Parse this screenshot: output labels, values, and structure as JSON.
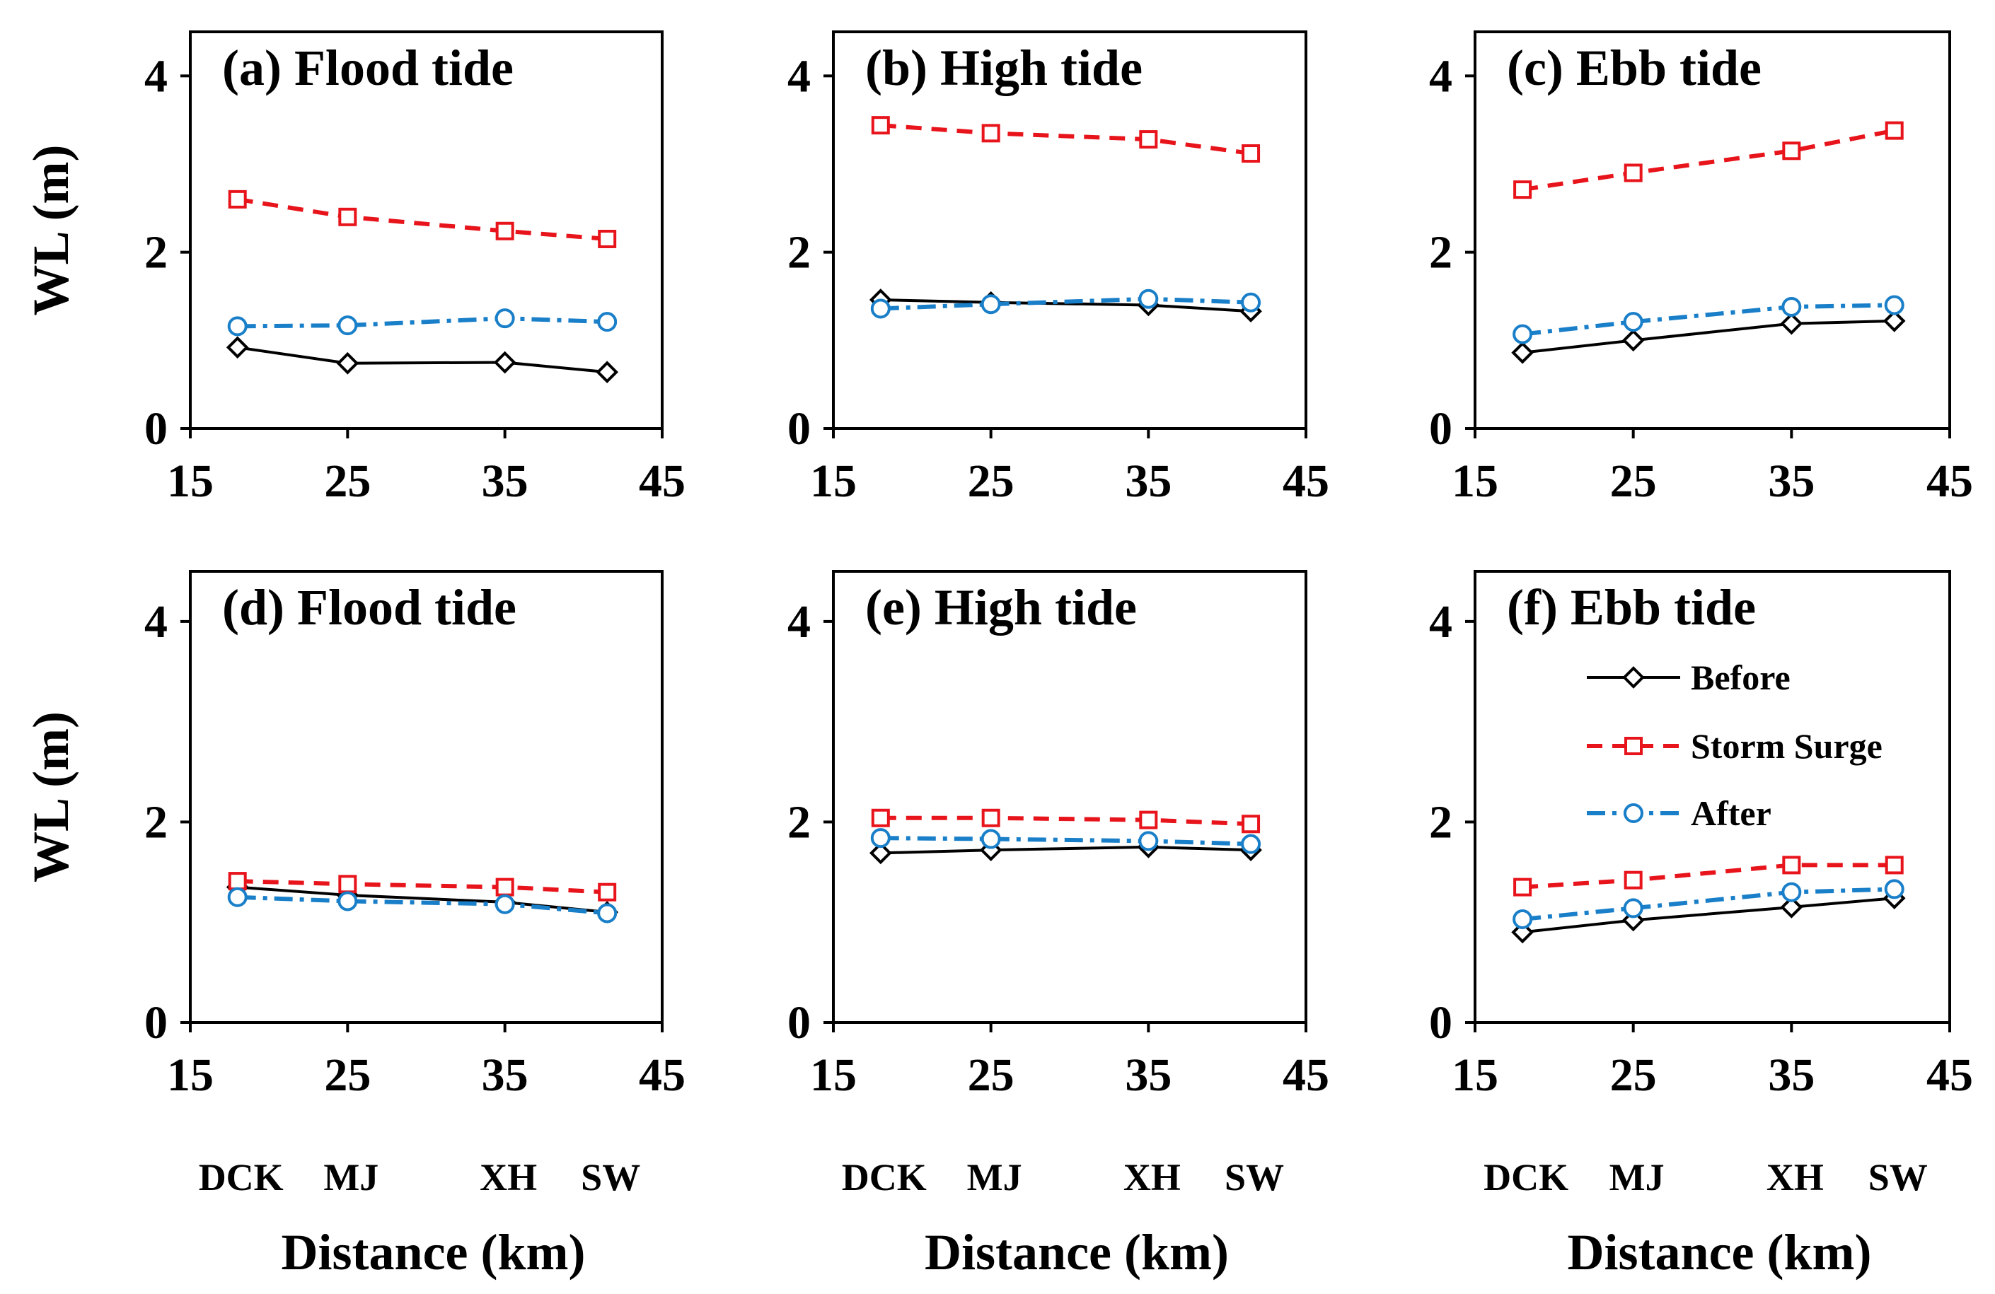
{
  "colors": {
    "before": "#000000",
    "storm_surge": "#e8141b",
    "after": "#1a7fc9"
  },
  "stations": [
    "DCK",
    "MJ",
    "XH",
    "SW"
  ],
  "axis": {
    "xlabel": "Distance (km)",
    "ylabel": "WL (m)"
  },
  "legend": {
    "before": "Before",
    "storm_surge": "Storm Surge",
    "after": "After"
  },
  "chart_data": [
    {
      "type": "line",
      "panel": "a",
      "title": "(a) Flood tide",
      "xlabel": "",
      "ylabel": "WL (m)",
      "xlim": [
        15,
        45
      ],
      "ylim": [
        0,
        4.5
      ],
      "xticks": [
        15,
        25,
        35,
        45
      ],
      "yticks": [
        0,
        2,
        4
      ],
      "x": [
        18,
        25,
        35,
        41.5
      ],
      "series": [
        {
          "name": "Before",
          "values": [
            0.92,
            0.74,
            0.75,
            0.64
          ]
        },
        {
          "name": "Storm Surge",
          "values": [
            2.6,
            2.4,
            2.24,
            2.15
          ]
        },
        {
          "name": "After",
          "values": [
            1.16,
            1.17,
            1.25,
            1.21
          ]
        }
      ]
    },
    {
      "type": "line",
      "panel": "b",
      "title": "(b) High tide",
      "xlabel": "",
      "ylabel": "",
      "xlim": [
        15,
        45
      ],
      "ylim": [
        0,
        4.5
      ],
      "xticks": [
        15,
        25,
        35,
        45
      ],
      "yticks": [
        0,
        2,
        4
      ],
      "x": [
        18,
        25,
        35,
        41.5
      ],
      "series": [
        {
          "name": "Before",
          "values": [
            1.46,
            1.43,
            1.4,
            1.33
          ]
        },
        {
          "name": "Storm Surge",
          "values": [
            3.44,
            3.35,
            3.28,
            3.12
          ]
        },
        {
          "name": "After",
          "values": [
            1.36,
            1.41,
            1.47,
            1.43
          ]
        }
      ]
    },
    {
      "type": "line",
      "panel": "c",
      "title": "(c) Ebb tide",
      "xlabel": "",
      "ylabel": "",
      "xlim": [
        15,
        45
      ],
      "ylim": [
        0,
        4.5
      ],
      "xticks": [
        15,
        25,
        35,
        45
      ],
      "yticks": [
        0,
        2,
        4
      ],
      "x": [
        18,
        25,
        35,
        41.5
      ],
      "series": [
        {
          "name": "Before",
          "values": [
            0.86,
            1.0,
            1.19,
            1.22
          ]
        },
        {
          "name": "Storm Surge",
          "values": [
            2.71,
            2.9,
            3.15,
            3.38
          ]
        },
        {
          "name": "After",
          "values": [
            1.07,
            1.21,
            1.38,
            1.4
          ]
        }
      ]
    },
    {
      "type": "line",
      "panel": "d",
      "title": "(d) Flood tide",
      "xlabel": "Distance (km)",
      "ylabel": "WL (m)",
      "xlim": [
        15,
        45
      ],
      "ylim": [
        0,
        4.5
      ],
      "xticks": [
        15,
        25,
        35,
        45
      ],
      "yticks": [
        0,
        2,
        4
      ],
      "x": [
        18,
        25,
        35,
        41.5
      ],
      "series": [
        {
          "name": "Before",
          "values": [
            1.35,
            1.27,
            1.2,
            1.1
          ]
        },
        {
          "name": "Storm Surge",
          "values": [
            1.41,
            1.38,
            1.35,
            1.3
          ]
        },
        {
          "name": "After",
          "values": [
            1.25,
            1.21,
            1.18,
            1.09
          ]
        }
      ]
    },
    {
      "type": "line",
      "panel": "e",
      "title": "(e) High tide",
      "xlabel": "Distance (km)",
      "ylabel": "",
      "xlim": [
        15,
        45
      ],
      "ylim": [
        0,
        4.5
      ],
      "xticks": [
        15,
        25,
        35,
        45
      ],
      "yticks": [
        0,
        2,
        4
      ],
      "x": [
        18,
        25,
        35,
        41.5
      ],
      "series": [
        {
          "name": "Before",
          "values": [
            1.69,
            1.72,
            1.75,
            1.72
          ]
        },
        {
          "name": "Storm Surge",
          "values": [
            2.04,
            2.04,
            2.02,
            1.98
          ]
        },
        {
          "name": "After",
          "values": [
            1.84,
            1.83,
            1.81,
            1.78
          ]
        }
      ]
    },
    {
      "type": "line",
      "panel": "f",
      "title": "(f) Ebb tide",
      "xlabel": "Distance (km)",
      "ylabel": "",
      "xlim": [
        15,
        45
      ],
      "ylim": [
        0,
        4.5
      ],
      "xticks": [
        15,
        25,
        35,
        45
      ],
      "yticks": [
        0,
        2,
        4
      ],
      "x": [
        18,
        25,
        35,
        41.5
      ],
      "legend": "right",
      "series": [
        {
          "name": "Before",
          "values": [
            0.9,
            1.02,
            1.15,
            1.24
          ]
        },
        {
          "name": "Storm Surge",
          "values": [
            1.35,
            1.42,
            1.57,
            1.57
          ]
        },
        {
          "name": "After",
          "values": [
            1.03,
            1.14,
            1.3,
            1.33
          ]
        }
      ]
    }
  ]
}
